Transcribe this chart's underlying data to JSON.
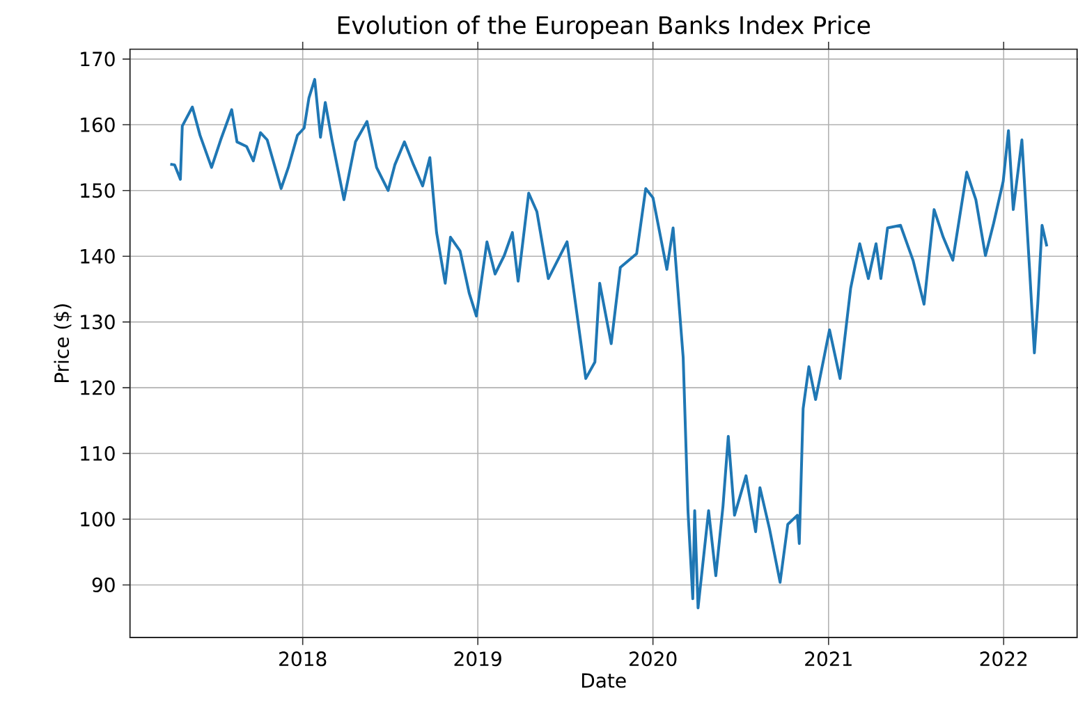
{
  "chart_data": {
    "type": "line",
    "title": "Evolution of the European Banks Index Price",
    "xlabel": "Date",
    "ylabel": "Price ($)",
    "grid": true,
    "xlim": [
      "2017-01-06",
      "2022-06-03"
    ],
    "ylim": [
      82,
      171.5
    ],
    "xticks": [
      {
        "value": "2018-01-01",
        "label": "2018"
      },
      {
        "value": "2019-01-01",
        "label": "2019"
      },
      {
        "value": "2020-01-01",
        "label": "2020"
      },
      {
        "value": "2021-01-01",
        "label": "2021"
      },
      {
        "value": "2022-01-01",
        "label": "2022"
      }
    ],
    "yticks": [
      90,
      100,
      110,
      120,
      130,
      140,
      150,
      160,
      170
    ],
    "x": [
      "2017-03-31",
      "2017-04-09",
      "2017-04-21",
      "2017-04-25",
      "2017-05-16",
      "2017-06-01",
      "2017-06-25",
      "2017-07-14",
      "2017-08-06",
      "2017-08-17",
      "2017-09-06",
      "2017-09-20",
      "2017-10-05",
      "2017-10-19",
      "2017-11-17",
      "2017-12-02",
      "2017-12-21",
      "2018-01-04",
      "2018-01-14",
      "2018-01-26",
      "2018-02-07",
      "2018-02-17",
      "2018-03-03",
      "2018-03-28",
      "2018-04-21",
      "2018-05-15",
      "2018-06-04",
      "2018-06-28",
      "2018-07-12",
      "2018-08-01",
      "2018-08-20",
      "2018-09-08",
      "2018-09-23",
      "2018-10-07",
      "2018-10-25",
      "2018-11-05",
      "2018-11-25",
      "2018-12-14",
      "2018-12-29",
      "2019-01-20",
      "2019-02-06",
      "2019-02-25",
      "2019-03-14",
      "2019-03-26",
      "2019-04-17",
      "2019-05-04",
      "2019-05-28",
      "2019-07-06",
      "2019-08-14",
      "2019-09-02",
      "2019-09-12",
      "2019-10-06",
      "2019-10-25",
      "2019-11-28",
      "2019-12-17",
      "2020-01-01",
      "2020-01-30",
      "2020-02-12",
      "2020-03-04",
      "2020-03-14",
      "2020-03-24",
      "2020-03-28",
      "2020-04-04",
      "2020-04-26",
      "2020-05-11",
      "2020-05-26",
      "2020-06-06",
      "2020-06-19",
      "2020-07-13",
      "2020-08-02",
      "2020-08-11",
      "2020-08-31",
      "2020-09-22",
      "2020-10-08",
      "2020-10-28",
      "2020-11-01",
      "2020-11-09",
      "2020-11-21",
      "2020-12-05",
      "2021-01-03",
      "2021-01-25",
      "2021-02-16",
      "2021-03-07",
      "2021-03-25",
      "2021-04-10",
      "2021-04-20",
      "2021-05-04",
      "2021-05-31",
      "2021-06-26",
      "2021-07-19",
      "2021-08-09",
      "2021-08-28",
      "2021-09-17",
      "2021-10-16",
      "2021-11-04",
      "2021-11-24",
      "2021-12-11",
      "2021-12-31",
      "2022-01-11",
      "2022-01-21",
      "2022-02-08",
      "2022-02-24",
      "2022-03-06",
      "2022-03-13",
      "2022-03-22",
      "2022-04-01"
    ],
    "series": [
      {
        "color": "#1f77b4",
        "values": [
          154,
          153.9,
          151.7,
          159.8,
          162.7,
          158.4,
          153.5,
          157.7,
          162.3,
          157.4,
          156.7,
          154.5,
          158.8,
          157.7,
          150.3,
          153.5,
          158.4,
          159.5,
          164.1,
          166.9,
          158.1,
          163.4,
          157.7,
          148.6,
          157.4,
          160.5,
          153.5,
          150,
          153.9,
          157.4,
          153.9,
          150.7,
          155,
          143.6,
          135.9,
          142.9,
          140.8,
          134.4,
          130.9,
          142.2,
          137.3,
          140.1,
          143.6,
          136.2,
          149.6,
          146.8,
          136.6,
          142.2,
          121.4,
          123.9,
          135.9,
          126.7,
          138.3,
          140.4,
          150.3,
          148.9,
          138,
          144.3,
          124.6,
          101.3,
          87.9,
          101.3,
          86.5,
          101.3,
          91.4,
          102,
          112.6,
          100.6,
          106.6,
          98.1,
          104.8,
          98.5,
          90.4,
          99.2,
          100.6,
          96.3,
          116.8,
          123.2,
          118.2,
          128.8,
          121.4,
          135.1,
          141.9,
          136.6,
          141.9,
          136.6,
          144.3,
          144.7,
          139.4,
          132.7,
          147.1,
          142.9,
          139.4,
          152.8,
          148.6,
          140.1,
          145,
          151.4,
          159.1,
          147.1,
          157.7,
          138,
          125.3,
          132.7,
          144.7,
          141.5
        ]
      }
    ]
  }
}
